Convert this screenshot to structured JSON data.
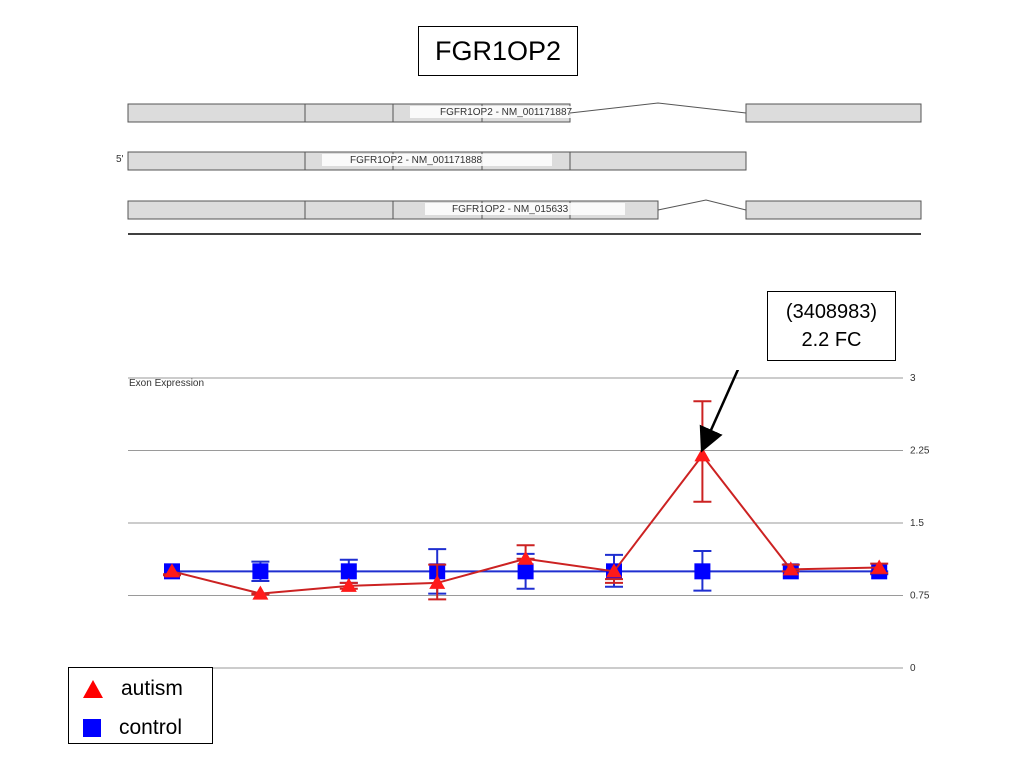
{
  "title": "FGR1OP2",
  "annotation": {
    "line1": "(3408983)",
    "line2": "2.2 FC"
  },
  "gene_model": {
    "transcripts": [
      {
        "label": "FGFR1OP2 - NM_001171887"
      },
      {
        "label": "FGFR1OP2 - NM_001171888",
        "strand_label": "5'"
      },
      {
        "label": "FGFR1OP2 - NM_015633"
      }
    ]
  },
  "legend": {
    "items": [
      {
        "label": "autism",
        "color": "#ff0000",
        "shape": "triangle"
      },
      {
        "label": "control",
        "color": "#0000ff",
        "shape": "square"
      }
    ]
  },
  "chart_data": {
    "type": "line",
    "ylabel": "Exon Expression",
    "ylim": [
      0,
      3
    ],
    "yticks": [
      "3",
      "2.25",
      "1.5",
      "0.75",
      "0"
    ],
    "grid": true,
    "x": [
      1,
      2,
      3,
      4,
      5,
      6,
      7,
      8,
      9
    ],
    "series": [
      {
        "name": "autism",
        "color": "#ff0000",
        "marker": "triangle",
        "values": [
          1.0,
          0.77,
          0.85,
          0.88,
          1.13,
          1.0,
          2.2,
          1.02,
          1.04
        ],
        "err_high": [
          0.97,
          0.77,
          0.88,
          1.07,
          1.27,
          0.92,
          2.76,
          1.07,
          1.08
        ],
        "err_low": [
          0.96,
          0.76,
          0.82,
          0.71,
          1.13,
          0.88,
          1.72,
          1.0,
          0.98
        ]
      },
      {
        "name": "control",
        "color": "#0000ff",
        "marker": "square",
        "values": [
          1.0,
          1.0,
          1.0,
          1.0,
          1.0,
          1.0,
          1.0,
          1.0,
          1.0
        ],
        "err_high": [
          1.0,
          1.1,
          1.12,
          1.23,
          1.18,
          1.17,
          1.21,
          1.0,
          1.0
        ],
        "err_low": [
          1.0,
          0.9,
          0.88,
          0.77,
          0.82,
          0.84,
          0.8,
          1.0,
          0.97
        ]
      }
    ]
  }
}
